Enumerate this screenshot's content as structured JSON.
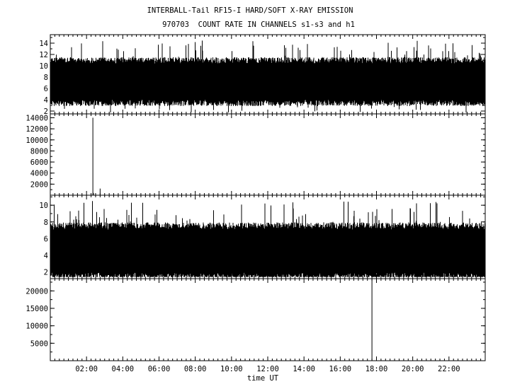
{
  "title": "INTERBALL-Tail RF15-I HARD/SOFT X-RAY EMISSION",
  "subtitle": "970703  COUNT RATE IN CHANNELS s1-s3 and h1",
  "chart_data": [
    {
      "type": "line",
      "panel": 1,
      "x": {
        "unit": "hours UT",
        "range": [
          0,
          24
        ]
      },
      "ylim": [
        1.5,
        15.5
      ],
      "yticks": [
        2,
        4,
        6,
        8,
        10,
        12,
        14
      ],
      "series": [
        {
          "baseline": 7.2,
          "spread_typical": [
            3.5,
            11
          ],
          "spikes_max": 14.5
        }
      ]
    },
    {
      "type": "line",
      "panel": 2,
      "x": {
        "unit": "hours UT",
        "range": [
          0,
          24
        ]
      },
      "ylim": [
        0,
        14700
      ],
      "yticks": [
        2000,
        4000,
        6000,
        8000,
        10000,
        12000,
        14000
      ],
      "series": [
        {
          "baseline": 0,
          "spikes": [
            {
              "x": 2.35,
              "y": 14000
            },
            {
              "x": 2.38,
              "y": 400
            },
            {
              "x": 2.75,
              "y": 1200
            }
          ]
        }
      ]
    },
    {
      "type": "line",
      "panel": 3,
      "x": {
        "unit": "hours UT",
        "range": [
          0,
          24
        ]
      },
      "ylim": [
        1.2,
        11.2
      ],
      "yticks": [
        2,
        4,
        6,
        8,
        10
      ],
      "series": [
        {
          "baseline": 4.5,
          "spread_typical": [
            2,
            8
          ],
          "spikes_max": 10.5
        }
      ]
    },
    {
      "type": "line",
      "panel": 4,
      "x": {
        "unit": "hours UT",
        "range": [
          0,
          24
        ]
      },
      "ylim": [
        0,
        23500
      ],
      "yticks": [
        5000,
        10000,
        15000,
        20000
      ],
      "series": [
        {
          "baseline": 0,
          "spikes": [
            {
              "x": 17.75,
              "y": 23500
            }
          ]
        }
      ]
    }
  ],
  "xaxis": {
    "label": "time UT",
    "ticks": [
      "02:00",
      "04:00",
      "06:00",
      "08:00",
      "10:00",
      "12:00",
      "14:00",
      "16:00",
      "18:00",
      "20:00",
      "22:00"
    ],
    "tick_hours": [
      2,
      4,
      6,
      8,
      10,
      12,
      14,
      16,
      18,
      20,
      22
    ]
  }
}
